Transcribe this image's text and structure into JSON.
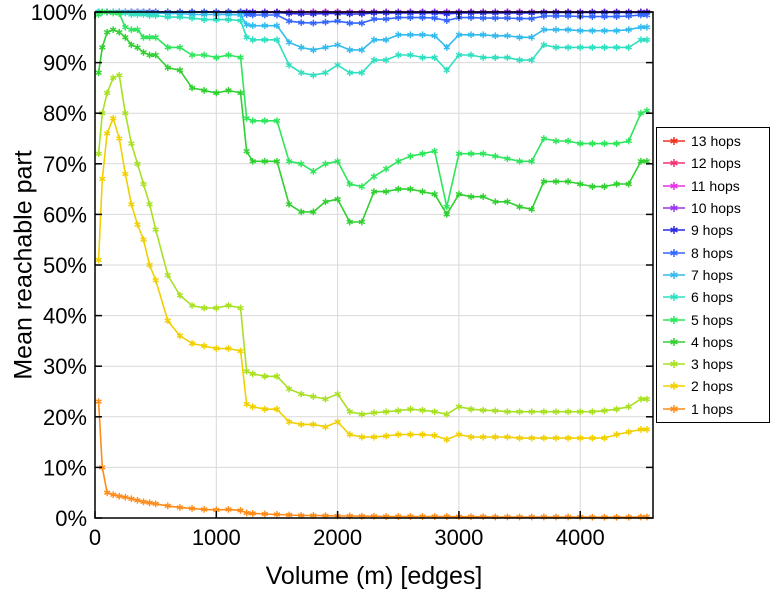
{
  "chart_data": {
    "type": "line",
    "title": "",
    "xlabel": "Volume (m) [edges]",
    "ylabel": "Mean reachable part",
    "xlim": [
      0,
      4600
    ],
    "ylim": [
      0,
      100
    ],
    "grid": true,
    "legend_position": "outside-right",
    "marker": "asterisk",
    "x_axis": {
      "tick_values": [
        0,
        1000,
        2000,
        3000,
        4000
      ],
      "tick_labels": [
        "0",
        "1000",
        "2000",
        "3000",
        "4000"
      ]
    },
    "y_axis": {
      "tick_values": [
        0,
        10,
        20,
        30,
        40,
        50,
        60,
        70,
        80,
        90,
        100
      ],
      "tick_labels": [
        "0%",
        "10%",
        "20%",
        "30%",
        "40%",
        "50%",
        "60%",
        "70%",
        "80%",
        "90%",
        "100%"
      ]
    },
    "x": [
      30,
      60,
      100,
      150,
      200,
      250,
      300,
      350,
      400,
      450,
      500,
      600,
      700,
      800,
      900,
      1000,
      1100,
      1200,
      1250,
      1300,
      1400,
      1500,
      1600,
      1700,
      1800,
      1900,
      2000,
      2100,
      2200,
      2300,
      2400,
      2500,
      2600,
      2700,
      2800,
      2900,
      3000,
      3100,
      3200,
      3300,
      3400,
      3500,
      3600,
      3700,
      3800,
      3900,
      4000,
      4100,
      4200,
      4300,
      4400,
      4500,
      4550
    ],
    "series": [
      {
        "name": "13 hops",
        "color": "#ee3322",
        "values": 100
      },
      {
        "name": "12 hops",
        "color": "#f23373",
        "values": 100
      },
      {
        "name": "11 hops",
        "color": "#e632e6",
        "values": 100
      },
      {
        "name": "10 hops",
        "color": "#9933ee",
        "values": 100
      },
      {
        "name": "9 hops",
        "color": "#2929de",
        "values": [
          100,
          100,
          100,
          100,
          100,
          100,
          100,
          100,
          100,
          100,
          100,
          100,
          100,
          100,
          100,
          100,
          100,
          100,
          99.9,
          99.9,
          99.9,
          99.9,
          99.7,
          99.6,
          99.6,
          99.7,
          99.7,
          99.6,
          99.6,
          99.8,
          99.8,
          99.8,
          99.8,
          99.8,
          99.8,
          99.6,
          99.8,
          99.8,
          99.8,
          99.8,
          99.8,
          99.8,
          99.8,
          99.9,
          99.9,
          99.9,
          99.9,
          99.9,
          99.9,
          99.9,
          99.9,
          99.9,
          99.9
        ]
      },
      {
        "name": "8 hops",
        "color": "#3366ff",
        "values": [
          100,
          100,
          100,
          100,
          100,
          100,
          100,
          100,
          100,
          100,
          100,
          100,
          100,
          100,
          100,
          99.9,
          99.9,
          99.9,
          99.5,
          99.4,
          99.4,
          99.4,
          98.2,
          97.9,
          97.8,
          98,
          98.2,
          97.8,
          97.8,
          98.6,
          98.6,
          98.9,
          98.9,
          98.9,
          98.8,
          98.3,
          98.9,
          98.9,
          98.8,
          98.8,
          98.8,
          98.7,
          98.7,
          99.2,
          99.2,
          99.2,
          99.1,
          99.1,
          99.1,
          99.1,
          99.2,
          99.4,
          99.4
        ]
      },
      {
        "name": "7 hops",
        "color": "#33bbee",
        "values": [
          100,
          100,
          100,
          100,
          100,
          100,
          100,
          100,
          100,
          99.8,
          99.8,
          99.7,
          99.7,
          99.5,
          99.5,
          99.5,
          99.5,
          99.4,
          97.5,
          97.3,
          97.3,
          97.3,
          94,
          93,
          92.5,
          93,
          93.5,
          92.5,
          92.5,
          94.5,
          94.5,
          95.5,
          95.5,
          95.5,
          95.3,
          93,
          95.5,
          95.5,
          95.5,
          95.3,
          95.3,
          95,
          95,
          96.5,
          96.5,
          96.5,
          96.3,
          96.3,
          96.3,
          96.3,
          96.5,
          97,
          97
        ]
      },
      {
        "name": "6 hops",
        "color": "#2ee0c0",
        "values": [
          100,
          100,
          100,
          100,
          99.8,
          99.8,
          99.5,
          99.5,
          99.5,
          99.3,
          99.3,
          99,
          99,
          98.8,
          98.5,
          98.5,
          98.5,
          98.3,
          95,
          94.5,
          94.5,
          94.5,
          89.5,
          88,
          87.5,
          88,
          89.5,
          88,
          88,
          90.5,
          90.5,
          91.5,
          91.5,
          91,
          91,
          88.5,
          91.5,
          91.5,
          91,
          91,
          91,
          90.5,
          90.5,
          93.5,
          93,
          93,
          93,
          93,
          93,
          93,
          93,
          94.5,
          94.5
        ]
      },
      {
        "name": "5 hops",
        "color": "#2ee65c",
        "values": [
          99.5,
          100,
          100,
          99.8,
          99.7,
          97,
          96.5,
          96.5,
          95,
          95,
          95,
          93,
          93,
          91.5,
          91.5,
          91,
          91.5,
          91,
          79,
          78.5,
          78.5,
          78.5,
          70.5,
          70,
          68.5,
          70,
          70.5,
          66,
          65.5,
          67.5,
          69,
          70.5,
          71.5,
          72,
          72.5,
          61.5,
          72,
          72,
          72,
          71.5,
          71,
          70.5,
          70.5,
          75,
          74.5,
          74.5,
          74,
          74,
          74,
          74,
          74.5,
          80,
          80.5
        ]
      },
      {
        "name": "4 hops",
        "color": "#30d030",
        "values": [
          88,
          93,
          96,
          96.5,
          96,
          95,
          93.5,
          93,
          92,
          91.5,
          91.5,
          89,
          88.5,
          85,
          84.5,
          84,
          84.5,
          84,
          72.5,
          70.5,
          70.5,
          70.5,
          62,
          60.5,
          60.5,
          62.5,
          63,
          58.5,
          58.5,
          64.5,
          64.5,
          65,
          65,
          64.5,
          64,
          60,
          64,
          63.5,
          63.5,
          62.5,
          62.5,
          61.5,
          61,
          66.5,
          66.5,
          66.5,
          66,
          65.5,
          65.5,
          66,
          66,
          70.5,
          70.5
        ]
      },
      {
        "name": "3 hops",
        "color": "#a8e022",
        "values": [
          72,
          80,
          84,
          87,
          87.5,
          80,
          74,
          70,
          66,
          62,
          57,
          48,
          44,
          42,
          41.5,
          41.5,
          42,
          41.5,
          29,
          28.5,
          28,
          28,
          25.5,
          24.5,
          24,
          23.5,
          24.5,
          21,
          20.5,
          20.8,
          21,
          21.2,
          21.5,
          21.3,
          21,
          20.5,
          22,
          21.5,
          21.3,
          21.2,
          21,
          21,
          21,
          21,
          21,
          21,
          21,
          21,
          21.2,
          21.5,
          22,
          23.5,
          23.5
        ]
      },
      {
        "name": "2 hops",
        "color": "#f0d000",
        "values": [
          51,
          67,
          76,
          79,
          75,
          68,
          62,
          58,
          55,
          50,
          47,
          39,
          36,
          34.5,
          34,
          33.5,
          33.5,
          33,
          22.5,
          22,
          21.5,
          21.5,
          19,
          18.5,
          18.5,
          18,
          19,
          16.5,
          16,
          16,
          16.2,
          16.5,
          16.5,
          16.5,
          16.3,
          15.5,
          16.5,
          16,
          16,
          16,
          16,
          15.8,
          15.8,
          15.8,
          15.8,
          15.8,
          15.8,
          15.8,
          15.8,
          16.5,
          17,
          17.5,
          17.5
        ]
      },
      {
        "name": "1 hops",
        "color": "#ff8c1a",
        "values": [
          23,
          10,
          5,
          4.6,
          4.3,
          4.1,
          3.8,
          3.5,
          3.2,
          3,
          2.8,
          2.4,
          2.1,
          1.9,
          1.7,
          1.6,
          1.7,
          1.5,
          1,
          0.9,
          0.8,
          0.7,
          0.6,
          0.5,
          0.5,
          0.45,
          0.4,
          0.4,
          0.35,
          0.35,
          0.3,
          0.3,
          0.3,
          0.3,
          0.3,
          0.3,
          0.25,
          0.25,
          0.25,
          0.2,
          0.2,
          0.2,
          0.2,
          0.2,
          0.2,
          0.2,
          0.2,
          0.15,
          0.15,
          0.15,
          0.15,
          0.2,
          0.2
        ]
      }
    ],
    "style": {
      "grid_color": "#d9d9d9",
      "border_color": "#000000",
      "background": "#ffffff"
    }
  }
}
